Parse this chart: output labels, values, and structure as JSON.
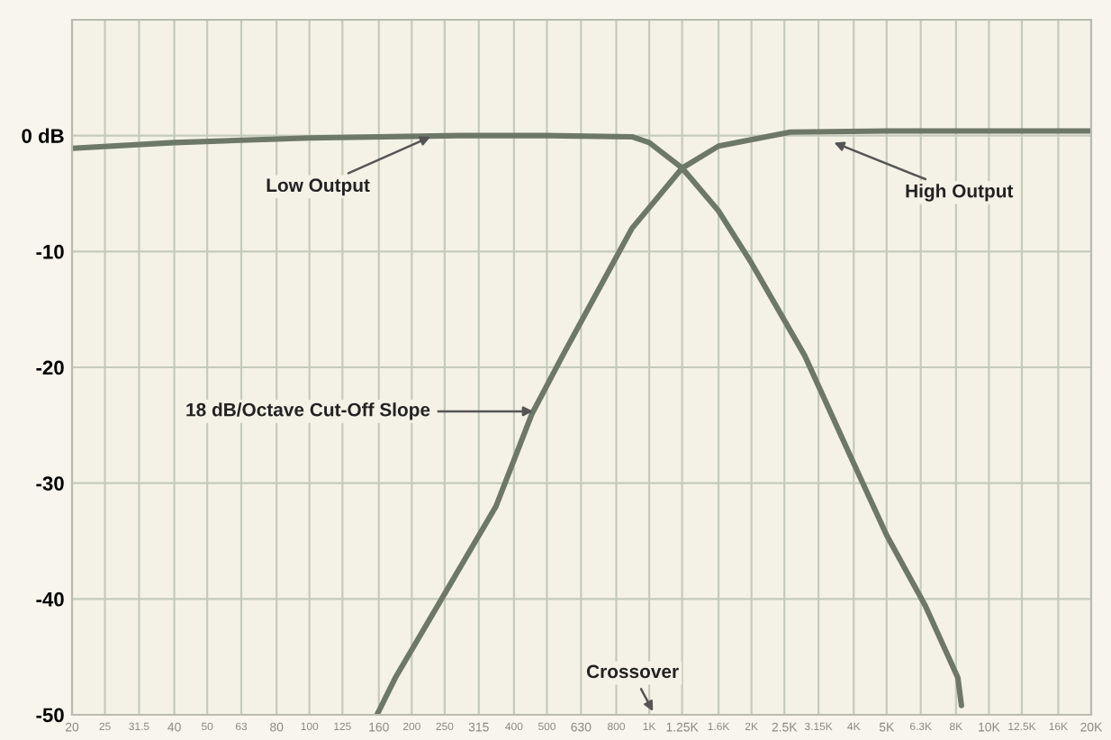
{
  "chart_data": {
    "type": "line",
    "x": [
      20,
      40,
      100,
      276,
      500,
      890,
      1000,
      1250,
      1600,
      2000,
      2870,
      4000,
      5000,
      6500,
      8100,
      8300
    ],
    "series": [
      {
        "color": "#6e7868",
        "values": [
          -1.1,
          -0.6,
          -0.2,
          0,
          0,
          -0.1,
          -0.6,
          -2.8,
          -6.5,
          -11,
          -19,
          -28.3,
          -34.5,
          -40.6,
          -46.8,
          -49.2
        ]
      },
      {
        "color": "#6e7868",
        "x": [
          158,
          179,
          354,
          452,
          556,
          632,
          890,
          1250,
          1600,
          2600,
          5000,
          10000,
          20000
        ],
        "values": [
          -50,
          -46.8,
          -32,
          -24,
          -19,
          -16,
          -8,
          -2.8,
          -0.9,
          0.3,
          0.4,
          0.4,
          0.4
        ]
      }
    ],
    "xlim": [
      20,
      20000
    ],
    "ylim": [
      -50,
      10
    ],
    "log": "x",
    "xticks": [
      20,
      {
        "value": 25,
        "label": "25"
      },
      {
        "value": 31.5,
        "label": "31.5"
      },
      40,
      50,
      63,
      80,
      100,
      125,
      160,
      200,
      250,
      315,
      400,
      500,
      630,
      800,
      {
        "value": 1000,
        "label": "1K"
      },
      {
        "value": 1250,
        "label": "1.25K"
      },
      {
        "value": 1600,
        "label": "1.6K"
      },
      {
        "value": 2000,
        "label": "2K"
      },
      {
        "value": 2500,
        "label": "2.5K"
      },
      {
        "value": 3150,
        "label": "3.15K"
      },
      {
        "value": 4000,
        "label": "4K"
      },
      {
        "value": 5000,
        "label": "5K"
      },
      {
        "value": 6300,
        "label": "6.3K"
      },
      {
        "value": 8000,
        "label": "8K"
      },
      {
        "value": 10000,
        "label": "10K"
      },
      {
        "value": 12500,
        "label": "12.5K"
      },
      {
        "value": 16000,
        "label": "16K"
      },
      {
        "value": 20000,
        "label": "20K"
      }
    ],
    "yticks": [
      {
        "value": 0,
        "label": "0 dB"
      },
      -10,
      -20,
      -30,
      -40,
      -50
    ],
    "grid": true,
    "marker": "none",
    "line_style": "solid",
    "annotations": [
      {
        "text": "Low Output",
        "x": 227,
        "y": -0.1
      },
      {
        "text": "High Output",
        "x": 3500,
        "y": -0.6
      },
      {
        "text": "18 dB/Octave Cut-Off Slope",
        "x": 455,
        "y": -23.8
      },
      "Crossover"
    ]
  }
}
